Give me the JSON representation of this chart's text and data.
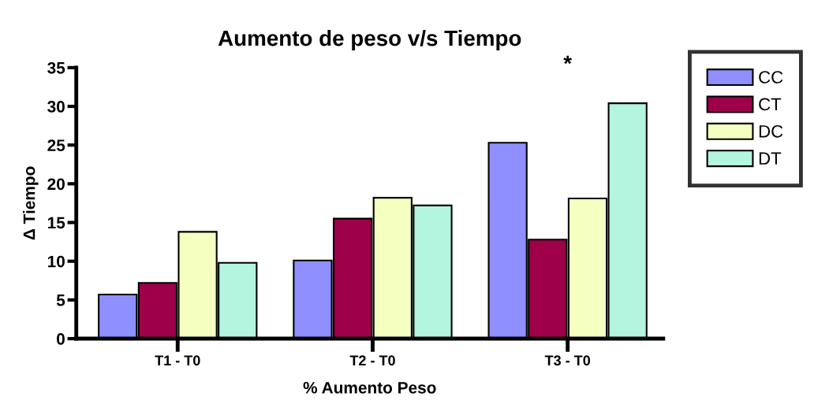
{
  "chart_data": {
    "type": "bar",
    "title": "Aumento de peso v/s Tiempo",
    "xlabel": "% Aumento Peso",
    "ylabel": "Δ Tiempo",
    "categories": [
      "T1 - T0",
      "T2 - T0",
      "T3 - T0"
    ],
    "series": [
      {
        "name": "CC",
        "color": "#8f8fff",
        "values": [
          5.7,
          10.1,
          25.3
        ]
      },
      {
        "name": "CT",
        "color": "#9e0049",
        "values": [
          7.2,
          15.5,
          12.8
        ]
      },
      {
        "name": "DC",
        "color": "#f4ffc0",
        "values": [
          13.8,
          18.2,
          18.1
        ]
      },
      {
        "name": "DT",
        "color": "#b3f5de",
        "values": [
          9.8,
          17.2,
          30.4
        ]
      }
    ],
    "ylim": [
      0,
      35
    ],
    "yticks": [
      0,
      5,
      10,
      15,
      20,
      25,
      30,
      35
    ],
    "annotations": [
      "*"
    ],
    "grid": false,
    "legend": "right"
  }
}
